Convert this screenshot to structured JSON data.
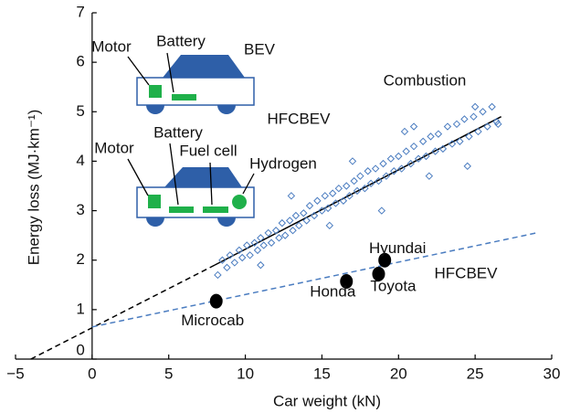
{
  "chart_data": {
    "type": "scatter",
    "xlabel": "Car weight (kN)",
    "ylabel": "Energy loss (MJ·km⁻¹)",
    "xlim": [
      -5,
      30
    ],
    "ylim": [
      0,
      7
    ],
    "xticks": [
      {
        "value": -5,
        "label": "−5"
      },
      0,
      5,
      10,
      15,
      20,
      25,
      30
    ],
    "yticks": [
      0,
      1,
      2,
      3,
      4,
      5,
      6,
      7
    ],
    "series": [
      {
        "name": "Combustion",
        "color": "#4a7cc0",
        "marker": "diamond",
        "x": [
          8.2,
          8.5,
          8.8,
          9.0,
          9.3,
          9.6,
          9.8,
          10.1,
          10.3,
          10.6,
          10.8,
          11.0,
          11.2,
          11.5,
          11.7,
          12.0,
          12.2,
          12.4,
          12.6,
          12.9,
          13.1,
          13.3,
          13.5,
          13.8,
          14.0,
          14.2,
          14.5,
          14.7,
          15.0,
          15.2,
          15.4,
          15.7,
          15.9,
          16.1,
          16.4,
          16.6,
          16.8,
          17.1,
          17.3,
          17.5,
          17.8,
          18.0,
          18.2,
          18.5,
          18.7,
          19.0,
          19.2,
          19.5,
          19.7,
          20.0,
          20.2,
          20.5,
          20.8,
          21.0,
          21.3,
          21.6,
          21.8,
          22.1,
          22.4,
          22.6,
          22.9,
          23.2,
          23.5,
          23.8,
          24.0,
          24.3,
          24.6,
          24.9,
          25.2,
          25.5,
          25.8,
          26.1,
          26.4,
          18.9,
          20.4,
          22.0,
          24.5,
          17.0,
          13.0,
          15.5,
          11.0,
          25.0,
          21.0,
          26.5
        ],
        "values": [
          1.7,
          2.0,
          1.85,
          2.1,
          1.95,
          2.2,
          2.05,
          2.3,
          2.1,
          2.35,
          2.2,
          2.45,
          2.3,
          2.55,
          2.35,
          2.6,
          2.45,
          2.75,
          2.5,
          2.8,
          2.6,
          2.9,
          2.7,
          2.95,
          2.8,
          3.1,
          2.9,
          3.2,
          3.0,
          3.3,
          3.05,
          3.35,
          3.15,
          3.45,
          3.2,
          3.5,
          3.3,
          3.6,
          3.4,
          3.7,
          3.45,
          3.8,
          3.55,
          3.85,
          3.6,
          3.95,
          3.7,
          4.05,
          3.8,
          4.1,
          3.85,
          4.2,
          3.95,
          4.3,
          4.05,
          4.4,
          4.1,
          4.5,
          4.2,
          4.55,
          4.25,
          4.7,
          4.35,
          4.75,
          4.4,
          4.85,
          4.5,
          4.9,
          4.6,
          5.0,
          4.7,
          5.1,
          4.8,
          3.0,
          4.6,
          3.7,
          3.9,
          4.0,
          3.3,
          2.7,
          1.9,
          5.1,
          4.7,
          4.75
        ]
      },
      {
        "name": "HFCBEV",
        "color": "#000000",
        "marker": "circle",
        "x": [
          8.1,
          16.6,
          18.7,
          19.1
        ],
        "values": [
          1.17,
          1.57,
          1.72,
          2.0
        ],
        "labels": [
          "Microcab",
          "Honda",
          "Toyota",
          "Hyundai"
        ]
      }
    ],
    "lines": [
      {
        "color": "#000000",
        "dashed": false,
        "x": [
          8,
          26.7
        ],
        "values": [
          1.9,
          4.9
        ]
      },
      {
        "color": "#000000",
        "dashed": true,
        "x": [
          -4,
          8
        ],
        "values": [
          0,
          1.9
        ]
      },
      {
        "color": "#4a7cc0",
        "dashed": true,
        "x": [
          0,
          29
        ],
        "values": [
          0.65,
          2.55
        ]
      }
    ],
    "bev_diagram": {
      "title": "BEV",
      "labels": [
        "Motor",
        "Battery"
      ]
    },
    "hfcbev_diagram": {
      "title": "HFCBEV",
      "labels": [
        "Motor",
        "Battery",
        "Fuel cell",
        "Hydrogen"
      ]
    }
  }
}
